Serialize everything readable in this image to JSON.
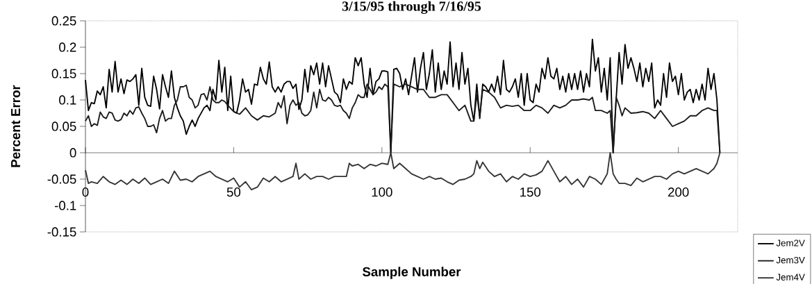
{
  "chart_data": {
    "type": "line",
    "title": "3/15/95 through 7/16/95",
    "xlabel": "Sample Number",
    "ylabel": "Percent Error",
    "xlim": [
      0,
      220
    ],
    "xticks": [
      0,
      50,
      100,
      150,
      200
    ],
    "ylim": [
      -0.15,
      0.25
    ],
    "yticks": [
      -0.15,
      -0.1,
      -0.05,
      0,
      0.05,
      0.1,
      0.15,
      0.2,
      0.25
    ],
    "legend": "bottom right",
    "line_style": "solid",
    "series": [
      {
        "name": "Jem2V",
        "color": "#000000",
        "x": [
          0,
          1,
          2,
          3,
          4,
          5,
          6,
          7,
          8,
          9,
          10,
          11,
          12,
          13,
          14,
          15,
          16,
          17,
          18,
          19,
          20,
          21,
          22,
          23,
          24,
          25,
          26,
          27,
          28,
          29,
          30,
          31,
          32,
          33,
          34,
          35,
          36,
          37,
          38,
          39,
          40,
          41,
          42,
          43,
          44,
          45,
          46,
          47,
          48,
          49,
          50,
          51,
          52,
          53,
          54,
          55,
          56,
          57,
          58,
          59,
          60,
          61,
          62,
          63,
          64,
          65,
          66,
          67,
          68,
          69,
          70,
          71,
          72,
          73,
          74,
          75,
          76,
          77,
          78,
          79,
          80,
          81,
          82,
          83,
          84,
          85,
          86,
          87,
          88,
          89,
          90,
          91,
          92,
          93,
          94,
          95,
          96,
          97,
          98,
          99,
          100,
          101,
          102,
          103,
          104,
          105,
          106,
          107,
          108,
          109,
          110,
          111,
          112,
          113,
          114,
          115,
          116,
          117,
          118,
          119,
          120,
          121,
          122,
          123,
          124,
          125,
          126,
          127,
          128,
          129,
          130,
          131,
          132,
          133,
          134,
          135,
          136,
          137,
          138,
          139,
          140,
          141,
          142,
          143,
          144,
          145,
          146,
          147,
          148,
          149,
          150,
          151,
          152,
          153,
          154,
          155,
          156,
          157,
          158,
          159,
          160,
          161,
          162,
          163,
          164,
          165,
          166,
          167,
          168,
          169,
          170,
          171,
          172,
          173,
          174,
          175,
          176,
          177,
          178,
          179,
          180,
          181,
          182,
          183,
          184,
          185,
          186,
          187,
          188,
          189,
          190,
          191,
          192,
          193,
          194,
          195,
          196,
          197,
          198,
          199,
          200,
          201,
          202,
          203,
          204,
          205,
          206,
          207,
          208,
          209,
          210,
          211,
          212,
          213,
          214
        ],
        "values": [
          0.138,
          0.08,
          0.095,
          0.093,
          0.117,
          0.11,
          0.125,
          0.085,
          0.158,
          0.115,
          0.173,
          0.115,
          0.14,
          0.112,
          0.138,
          0.135,
          0.14,
          0.148,
          0.09,
          0.16,
          0.105,
          0.09,
          0.088,
          0.145,
          0.12,
          0.083,
          0.148,
          0.125,
          0.105,
          0.155,
          0.105,
          0.085,
          0.07,
          0.06,
          0.035,
          0.05,
          0.062,
          0.05,
          0.065,
          0.075,
          0.085,
          0.09,
          0.08,
          0.12,
          0.1,
          0.175,
          0.115,
          0.162,
          0.08,
          0.145,
          0.078,
          0.075,
          0.1,
          0.14,
          0.115,
          0.12,
          0.092,
          0.13,
          0.128,
          0.162,
          0.14,
          0.13,
          0.172,
          0.125,
          0.115,
          0.125,
          0.115,
          0.13,
          0.135,
          0.135,
          0.122,
          0.13,
          0.082,
          0.1,
          0.158,
          0.115,
          0.165,
          0.148,
          0.17,
          0.13,
          0.17,
          0.125,
          0.165,
          0.14,
          0.115,
          0.11,
          0.095,
          0.14,
          0.12,
          0.135,
          0.13,
          0.18,
          0.165,
          0.18,
          0.13,
          0.105,
          0.16,
          0.11,
          0.135,
          0.14,
          0.155,
          0.155,
          0.153,
          0,
          0.158,
          0.16,
          0.15,
          0.12,
          0.14,
          0.11,
          0.145,
          0.18,
          0.115,
          0.16,
          0.19,
          0.12,
          0.15,
          0.195,
          0.115,
          0.17,
          0.12,
          0.155,
          0.13,
          0.21,
          0.125,
          0.17,
          0.12,
          0.19,
          0.13,
          0.16,
          0.09,
          0.06,
          0.13,
          0.065,
          0.13,
          0.125,
          0.115,
          0.13,
          0.115,
          0.145,
          0.11,
          0.175,
          0.12,
          0.115,
          0.125,
          0.14,
          0.105,
          0.15,
          0.09,
          0.15,
          0.1,
          0.095,
          0.13,
          0.115,
          0.16,
          0.14,
          0.18,
          0.145,
          0.14,
          0.16,
          0.12,
          0.145,
          0.115,
          0.15,
          0.12,
          0.15,
          0.12,
          0.155,
          0.115,
          0.15,
          0.125,
          0.215,
          0.155,
          0.18,
          0.115,
          0.16,
          0.1,
          0.18,
          0,
          0.1,
          0.19,
          0.13,
          0.205,
          0.16,
          0.18,
          0.16,
          0.135,
          0.17,
          0.125,
          0.16,
          0.135,
          0.17,
          0.085,
          0.1,
          0.09,
          0.15,
          0.105,
          0.17,
          0.135,
          0.145,
          0.11,
          0.15,
          0.1,
          0.115,
          0.12,
          0.095,
          0.12,
          0.1,
          0.13,
          0.1,
          0.16,
          0.12,
          0.15,
          0.1,
          0
        ]
      },
      {
        "name": "Jem3V",
        "color": "#1a1a1a",
        "x": [
          0,
          1,
          2,
          3,
          4,
          5,
          6,
          7,
          8,
          9,
          10,
          11,
          12,
          13,
          14,
          15,
          16,
          17,
          18,
          19,
          20,
          21,
          22,
          23,
          24,
          25,
          26,
          27,
          28,
          29,
          30,
          31,
          32,
          33,
          34,
          35,
          36,
          37,
          38,
          39,
          40,
          41,
          42,
          43,
          44,
          45,
          46,
          47,
          48,
          50,
          52,
          54,
          56,
          58,
          60,
          62,
          64,
          65,
          66,
          67,
          68,
          69,
          70,
          71,
          72,
          73,
          74,
          75,
          76,
          77,
          78,
          79,
          80,
          81,
          82,
          83,
          84,
          85,
          86,
          87,
          88,
          89,
          90,
          91,
          92,
          93,
          94,
          95,
          96,
          97,
          98,
          99,
          100,
          101,
          102,
          103,
          104,
          106,
          108,
          110,
          112,
          114,
          116,
          118,
          120,
          122,
          124,
          126,
          128,
          130,
          131,
          132,
          133,
          134,
          136,
          138,
          140,
          142,
          144,
          146,
          148,
          150,
          152,
          154,
          156,
          158,
          160,
          162,
          164,
          166,
          168,
          170,
          171,
          172,
          174,
          176,
          177,
          178,
          179,
          180,
          181,
          182,
          184,
          186,
          188,
          190,
          192,
          194,
          196,
          198,
          200,
          202,
          204,
          206,
          208,
          210,
          212,
          213,
          214
        ],
        "values": [
          0.06,
          0.07,
          0.05,
          0.055,
          0.052,
          0.077,
          0.068,
          0.065,
          0.077,
          0.075,
          0.062,
          0.06,
          0.063,
          0.075,
          0.07,
          0.08,
          0.073,
          0.085,
          0.087,
          0.075,
          0.065,
          0.05,
          0.05,
          0.053,
          0.038,
          0.065,
          0.08,
          0.06,
          0.065,
          0.065,
          0.09,
          0.1,
          0.125,
          0.125,
          0.128,
          0.105,
          0.1,
          0.085,
          0.09,
          0.11,
          0.112,
          0.1,
          0.125,
          0.1,
          0.095,
          0.095,
          0.1,
          0.097,
          0.09,
          0.078,
          0.073,
          0.085,
          0.07,
          0.062,
          0.07,
          0.068,
          0.075,
          0.095,
          0.085,
          0.108,
          0.055,
          0.09,
          0.1,
          0.09,
          0.095,
          0.075,
          0.07,
          0.072,
          0.08,
          0.115,
          0.085,
          0.12,
          0.1,
          0.098,
          0.105,
          0.1,
          0.09,
          0.088,
          0.09,
          0.08,
          0.075,
          0.065,
          0.085,
          0.095,
          0.11,
          0.105,
          0.105,
          0.13,
          0.12,
          0.11,
          0.115,
          0.125,
          0.12,
          0.13,
          0.125,
          0,
          0.13,
          0.125,
          0.13,
          0.125,
          0.12,
          0.12,
          0.105,
          0.105,
          0.11,
          0.11,
          0.095,
          0.08,
          0.09,
          0.06,
          0.06,
          0.11,
          0.07,
          0.12,
          0.115,
          0.105,
          0.085,
          0.09,
          0.088,
          0.09,
          0.08,
          0.08,
          0.09,
          0.085,
          0.075,
          0.09,
          0.085,
          0.09,
          0.1,
          0.1,
          0.102,
          0.1,
          0.105,
          0.08,
          0.08,
          0.075,
          0.08,
          0,
          0.105,
          0.09,
          0.07,
          0.085,
          0.075,
          0.076,
          0.078,
          0.075,
          0.065,
          0.08,
          0.065,
          0.05,
          0.055,
          0.06,
          0.07,
          0.07,
          0.08,
          0.085,
          0.08,
          0.08,
          0
        ]
      },
      {
        "name": "Jem4V",
        "color": "#333333",
        "x": [
          0,
          1,
          2,
          4,
          6,
          8,
          10,
          12,
          14,
          16,
          18,
          20,
          22,
          24,
          26,
          28,
          30,
          32,
          34,
          36,
          38,
          40,
          42,
          44,
          46,
          48,
          50,
          52,
          54,
          56,
          58,
          60,
          62,
          64,
          66,
          68,
          70,
          71,
          72,
          74,
          76,
          78,
          80,
          82,
          84,
          86,
          88,
          89,
          90,
          92,
          94,
          96,
          98,
          100,
          102,
          103,
          104,
          106,
          108,
          110,
          112,
          114,
          116,
          118,
          120,
          122,
          124,
          126,
          128,
          130,
          131,
          132,
          133,
          134,
          136,
          138,
          140,
          142,
          144,
          146,
          148,
          150,
          152,
          154,
          156,
          158,
          160,
          162,
          164,
          166,
          168,
          170,
          172,
          174,
          176,
          177,
          178,
          179,
          180,
          182,
          184,
          186,
          188,
          190,
          192,
          194,
          196,
          198,
          200,
          202,
          204,
          206,
          208,
          210,
          212,
          213,
          214
        ],
        "values": [
          -0.033,
          -0.058,
          -0.055,
          -0.058,
          -0.045,
          -0.055,
          -0.06,
          -0.052,
          -0.06,
          -0.05,
          -0.058,
          -0.048,
          -0.06,
          -0.055,
          -0.05,
          -0.058,
          -0.035,
          -0.052,
          -0.05,
          -0.055,
          -0.045,
          -0.04,
          -0.035,
          -0.045,
          -0.05,
          -0.055,
          -0.048,
          -0.065,
          -0.055,
          -0.07,
          -0.065,
          -0.048,
          -0.055,
          -0.045,
          -0.055,
          -0.05,
          -0.045,
          -0.02,
          -0.05,
          -0.04,
          -0.05,
          -0.045,
          -0.045,
          -0.05,
          -0.045,
          -0.045,
          -0.045,
          -0.02,
          -0.025,
          -0.022,
          -0.03,
          -0.022,
          -0.025,
          -0.02,
          -0.022,
          0,
          -0.03,
          -0.02,
          -0.03,
          -0.04,
          -0.045,
          -0.05,
          -0.045,
          -0.05,
          -0.048,
          -0.055,
          -0.06,
          -0.052,
          -0.05,
          -0.045,
          -0.04,
          -0.015,
          -0.03,
          -0.018,
          -0.035,
          -0.045,
          -0.04,
          -0.055,
          -0.045,
          -0.05,
          -0.04,
          -0.045,
          -0.042,
          -0.035,
          -0.015,
          -0.035,
          -0.055,
          -0.045,
          -0.06,
          -0.05,
          -0.065,
          -0.045,
          -0.05,
          -0.06,
          -0.04,
          0,
          -0.04,
          -0.05,
          -0.058,
          -0.058,
          -0.062,
          -0.048,
          -0.055,
          -0.05,
          -0.045,
          -0.045,
          -0.05,
          -0.04,
          -0.035,
          -0.04,
          -0.035,
          -0.03,
          -0.035,
          -0.04,
          -0.03,
          -0.02,
          0
        ]
      }
    ]
  }
}
